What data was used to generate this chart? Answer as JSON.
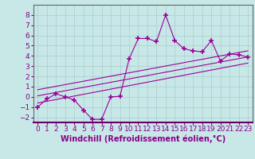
{
  "xlabel": "Windchill (Refroidissement éolien,°C)",
  "x_data": [
    0,
    1,
    2,
    3,
    4,
    5,
    6,
    7,
    8,
    9,
    10,
    11,
    12,
    13,
    14,
    15,
    16,
    17,
    18,
    19,
    20,
    21,
    22,
    23
  ],
  "y_main": [
    -1.0,
    -0.2,
    0.3,
    0.0,
    -0.3,
    -1.3,
    -2.2,
    -2.2,
    0.0,
    0.05,
    3.7,
    5.7,
    5.7,
    5.4,
    8.0,
    5.5,
    4.7,
    4.5,
    4.4,
    5.5,
    3.5,
    4.2,
    4.1,
    3.9
  ],
  "line_color": "#990099",
  "marker": "+",
  "regression_lines": [
    {
      "x": [
        0,
        23
      ],
      "y": [
        -0.6,
        3.3
      ]
    },
    {
      "x": [
        0,
        23
      ],
      "y": [
        0.1,
        3.9
      ]
    },
    {
      "x": [
        0,
        23
      ],
      "y": [
        0.7,
        4.5
      ]
    }
  ],
  "bg_color": "#c8e8e8",
  "grid_color": "#aacccc",
  "ylim": [
    -2.5,
    9.0
  ],
  "xlim": [
    -0.5,
    23.5
  ],
  "yticks": [
    -2,
    -1,
    0,
    1,
    2,
    3,
    4,
    5,
    6,
    7,
    8
  ],
  "xticks": [
    0,
    1,
    2,
    3,
    4,
    5,
    6,
    7,
    8,
    9,
    10,
    11,
    12,
    13,
    14,
    15,
    16,
    17,
    18,
    19,
    20,
    21,
    22,
    23
  ],
  "tick_color": "#880088",
  "label_color": "#880088",
  "xlabel_color": "#880088",
  "font_size": 6.5,
  "xlabel_fontsize": 7.0,
  "spine_color": "#666666",
  "bottom_spine_color": "#660066"
}
